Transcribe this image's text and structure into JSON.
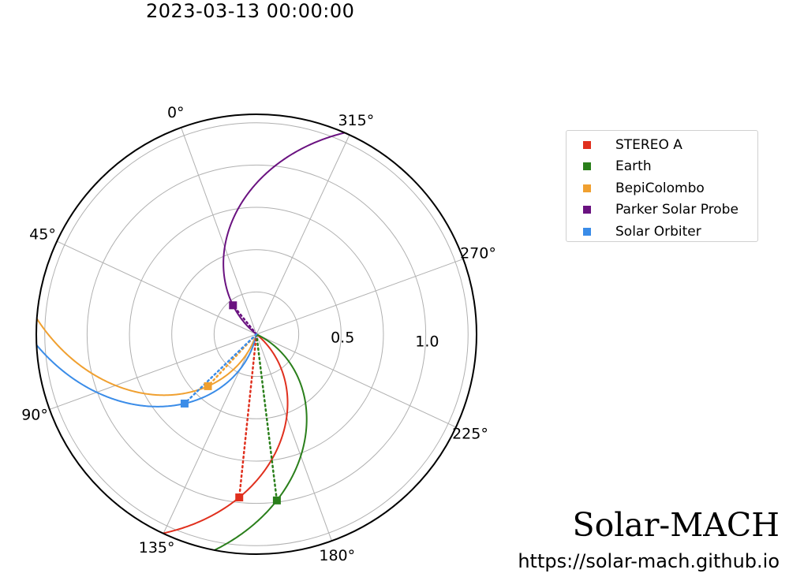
{
  "title": "2023-03-13 00:00:00",
  "branding": {
    "name": "Solar-MACH",
    "url": "https://solar-mach.github.io"
  },
  "chart_data": {
    "type": "polar",
    "rmax": 1.3,
    "radial_ticks": [
      {
        "value": 0.5,
        "label": "0.5"
      },
      {
        "value": 1.0,
        "label": "1.0"
      }
    ],
    "angular_ticks": [
      {
        "value": 0,
        "label": "0°"
      },
      {
        "value": 45,
        "label": "45°"
      },
      {
        "value": 90,
        "label": "90°"
      },
      {
        "value": 135,
        "label": "135°"
      },
      {
        "value": 180,
        "label": "180°"
      },
      {
        "value": 225,
        "label": "225°"
      },
      {
        "value": 270,
        "label": "270°"
      },
      {
        "value": 315,
        "label": "315°"
      }
    ],
    "grid": true,
    "legend_position": "right",
    "series": [
      {
        "name": "STEREO A",
        "color": "#e0301e",
        "r": 0.97,
        "lon": 154
      },
      {
        "name": "Earth",
        "color": "#2a7f1b",
        "r": 0.99,
        "lon": 167
      },
      {
        "name": "BepiColombo",
        "color": "#f0a030",
        "r": 0.42,
        "lon": 117
      },
      {
        "name": "Parker Solar Probe",
        "color": "#6a1280",
        "r": 0.22,
        "lon": 19
      },
      {
        "name": "Solar Orbiter",
        "color": "#3a8ce8",
        "r": 0.59,
        "lon": 114
      }
    ]
  }
}
